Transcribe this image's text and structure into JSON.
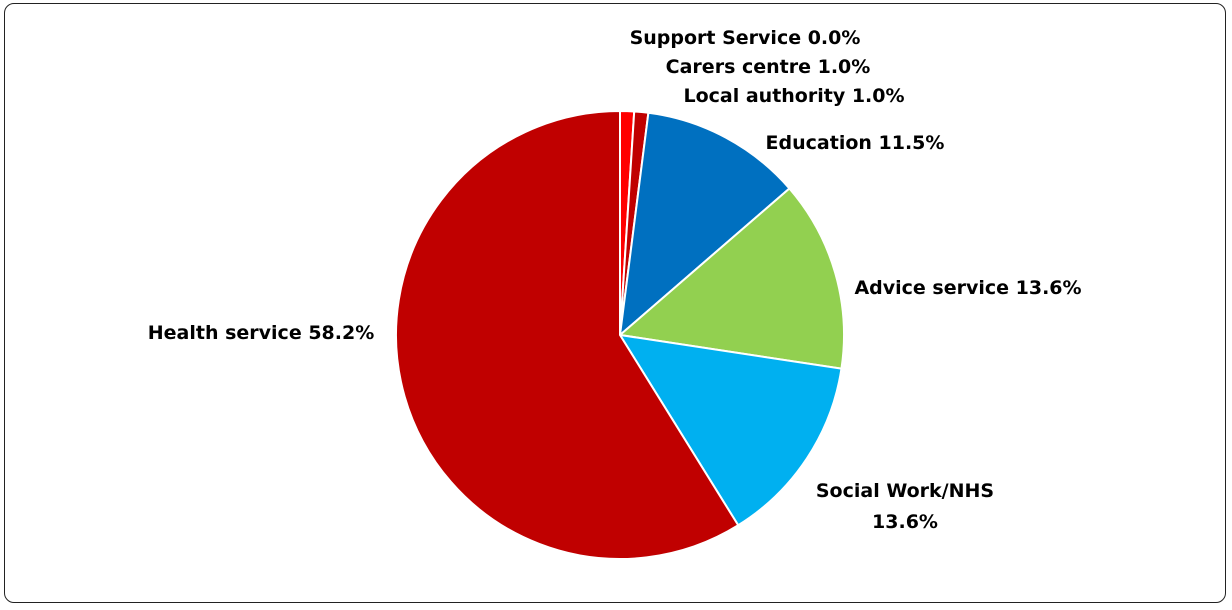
{
  "chart_data": {
    "type": "pie",
    "title": "",
    "start": "top",
    "direction": "clockwise",
    "legend": "none",
    "slices": [
      {
        "label": "Support Service",
        "value": 0.0,
        "display": "0.0%",
        "color": "#FF0000",
        "text": "Support Service 0.0%"
      },
      {
        "label": "Carers centre",
        "value": 1.0,
        "display": "1.0%",
        "color": "#FF0000",
        "text": "Carers centre 1.0%"
      },
      {
        "label": "Local authority",
        "value": 1.0,
        "display": "1.0%",
        "color": "#C00000",
        "text": "Local authority 1.0%"
      },
      {
        "label": "Education",
        "value": 11.5,
        "display": "11.5%",
        "color": "#0070C0",
        "text": "Education 11.5%"
      },
      {
        "label": "Advice service",
        "value": 13.6,
        "display": "13.6%",
        "color": "#92D050",
        "text": "Advice service 13.6%"
      },
      {
        "label": "Social Work/NHS",
        "value": 13.6,
        "display": "13.6%",
        "color": "#00B0F0",
        "text_lines": [
          "Social Work/NHS",
          "13.6%"
        ]
      },
      {
        "label": "Health service",
        "value": 58.2,
        "display": "58.2%",
        "color": "#C00000",
        "text": "Health service 58.2%"
      }
    ]
  }
}
